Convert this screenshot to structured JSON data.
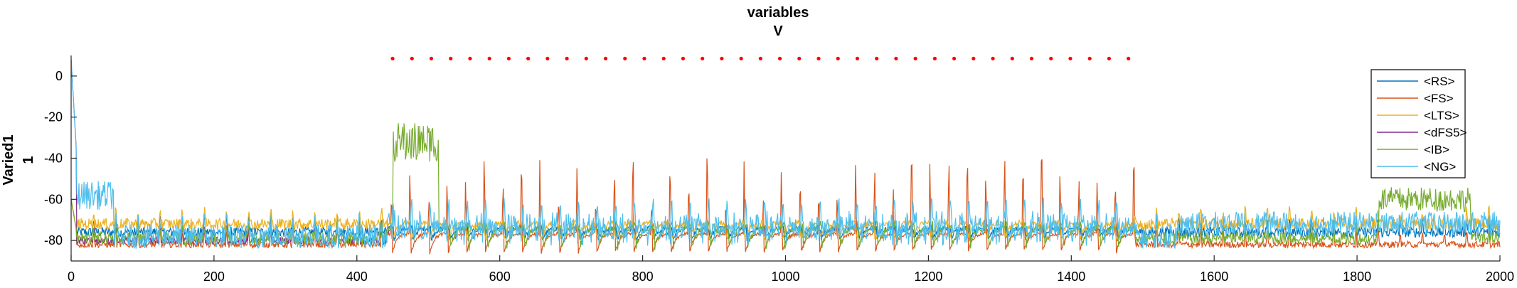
{
  "chart_data": {
    "type": "line",
    "title": "variables",
    "subtitle": "V",
    "ylabel": "Varied1",
    "ylabel2": "1",
    "xlabel": "",
    "xlim": [
      0,
      2000
    ],
    "ylim": [
      -90,
      10
    ],
    "xticks": [
      0,
      200,
      400,
      600,
      800,
      1000,
      1200,
      1400,
      1600,
      1800,
      2000
    ],
    "yticks": [
      0,
      -20,
      -40,
      -60,
      -80
    ],
    "grid": false,
    "legend_position": "top-right",
    "series": [
      {
        "name": "<RS>",
        "color": "#0072BD"
      },
      {
        "name": "<FS>",
        "color": "#D95319"
      },
      {
        "name": "<LTS>",
        "color": "#EDB120"
      },
      {
        "name": "<dFS5>",
        "color": "#7E2F8E"
      },
      {
        "name": "<IB>",
        "color": "#77AC30"
      },
      {
        "name": "<NG>",
        "color": "#4DBEEE"
      }
    ],
    "stimulus_dots": {
      "color": "#FF0000",
      "y": 8.5,
      "x_start": 450,
      "x_end": 1480,
      "count": 39
    }
  }
}
